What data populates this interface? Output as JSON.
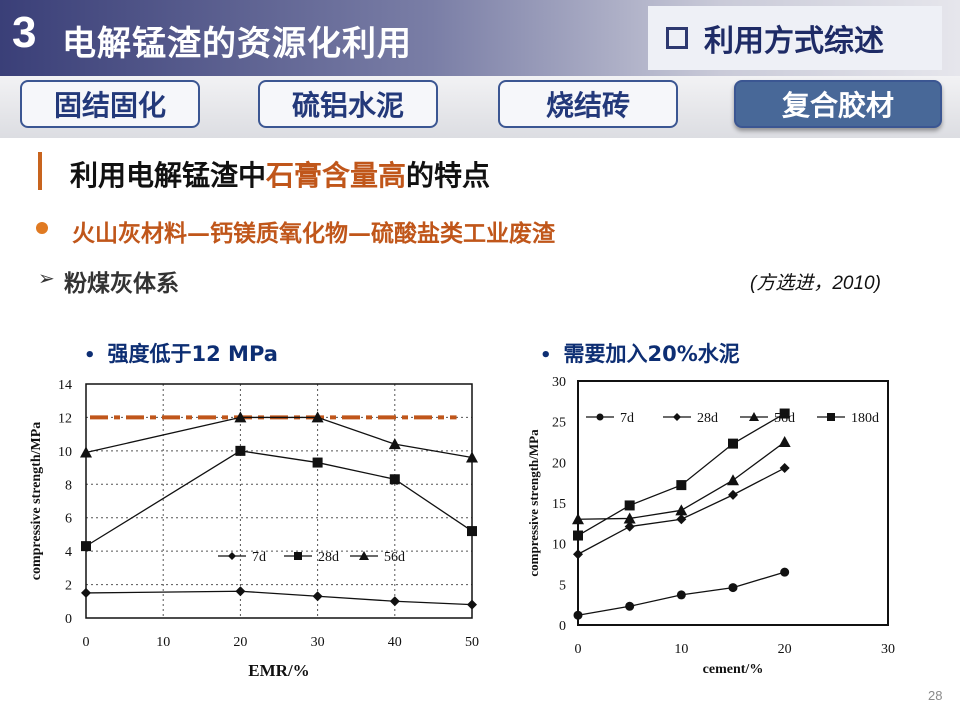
{
  "header": {
    "section_number": "3",
    "section_title": "电解锰渣的资源化利用",
    "subtitle": "利用方式综述"
  },
  "tabs": [
    {
      "label": "固结固化",
      "active": false
    },
    {
      "label": "硫铝水泥",
      "active": false
    },
    {
      "label": "烧结砖",
      "active": false
    },
    {
      "label": "复合胶材",
      "active": true
    }
  ],
  "heading": {
    "prefix": "利用电解锰渣中",
    "highlight": "石膏含量高",
    "suffix": "的特点"
  },
  "bullet": "火山灰材料—钙镁质氧化物—硫酸盐类工业废渣",
  "subsection": {
    "label": "粉煤灰体系",
    "citation": "(方选进，2010)"
  },
  "notes": {
    "left": "强度低于12 MPa",
    "right": "需要加入20%水泥"
  },
  "colors": {
    "accent": "#c0561a",
    "navy": "#1e2b66",
    "tab_active": "#486898"
  },
  "page_number": "28",
  "chart_data": [
    {
      "type": "line",
      "xlabel": "EMR/%",
      "ylabel": "compressive strength/MPa",
      "xlim": [
        0,
        50
      ],
      "ylim": [
        0,
        14
      ],
      "xticks": [
        0,
        10,
        20,
        30,
        40,
        50
      ],
      "yticks": [
        0,
        2,
        4,
        6,
        8,
        10,
        12,
        14
      ],
      "grid": true,
      "legend_position": "bottom-right",
      "x": [
        0,
        20,
        30,
        40,
        50
      ],
      "series": [
        {
          "name": "7d",
          "marker": "diamond",
          "values": [
            1.5,
            1.6,
            1.3,
            1.0,
            0.8
          ]
        },
        {
          "name": "28d",
          "marker": "square",
          "values": [
            4.3,
            10.0,
            9.3,
            8.3,
            5.2
          ]
        },
        {
          "name": "56d",
          "marker": "triangle",
          "values": [
            9.9,
            12.0,
            12.0,
            10.4,
            9.6
          ]
        }
      ],
      "reference_line": {
        "value": 12,
        "color": "#c0561a",
        "style": "dashed",
        "x_range": [
          0,
          48
        ]
      }
    },
    {
      "type": "line",
      "xlabel": "cement/%",
      "ylabel": "compressive strength/MPa",
      "xlim": [
        0,
        30
      ],
      "ylim": [
        0,
        30
      ],
      "xticks": [
        0,
        10,
        20,
        30
      ],
      "yticks": [
        0,
        5,
        10,
        15,
        20,
        25,
        30
      ],
      "grid": false,
      "legend_position": "top",
      "x": [
        0,
        5,
        10,
        15,
        20
      ],
      "series": [
        {
          "name": "7d",
          "marker": "circle",
          "values": [
            1.2,
            2.3,
            3.7,
            4.6,
            6.5
          ]
        },
        {
          "name": "28d",
          "marker": "diamond",
          "values": [
            8.7,
            12.1,
            13.0,
            16.0,
            19.3
          ]
        },
        {
          "name": "56d",
          "marker": "triangle",
          "values": [
            13.0,
            13.1,
            14.1,
            17.8,
            22.5
          ]
        },
        {
          "name": "180d",
          "marker": "square",
          "values": [
            11.0,
            14.7,
            17.2,
            22.3,
            26.0
          ]
        }
      ]
    }
  ]
}
